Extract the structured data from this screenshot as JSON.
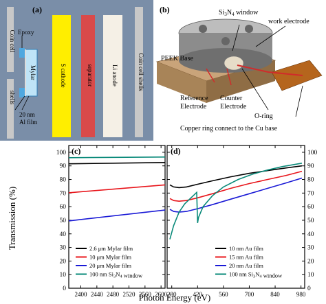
{
  "panel_a": {
    "label": "(a)",
    "coin_cell": "Coin cell",
    "epoxy": "Epoxy",
    "mylar": "Mylar",
    "shells": "shells",
    "al_film": [
      "20 nm",
      "Al film"
    ],
    "s_cathode": "S cathode",
    "separator": "separator",
    "li_anode": "Li anode",
    "coin_cell_shells": "Coin cell shells",
    "colors": {
      "background": "#7a8ea8",
      "cathode": "#ffee00",
      "separator": "#d94a4a",
      "anode": "#f5f0e6",
      "shell": "#c8c8c8",
      "epoxy": "#4fa8e0"
    }
  },
  "panel_b": {
    "label": "(b)",
    "window": "Si3N4 window",
    "work_electrode": "work electrode",
    "peek_base": "PEEK Base",
    "reference": [
      "Reference",
      "Electrode"
    ],
    "counter": [
      "Counter",
      "Electrode"
    ],
    "oring": "O-ring",
    "copper": "Copper ring connect to the Cu base",
    "colors": {
      "background": "#ffffff",
      "metal": "#8c8c8c",
      "peek": "#c9a47a",
      "copper": "#b5651d",
      "wire": "#d12b2b"
    }
  },
  "chart_data": [
    {
      "panel": "(c)",
      "type": "line",
      "ylabel": "Transmission (%)",
      "xlim": [
        2370,
        2610
      ],
      "ylim": [
        0,
        105
      ],
      "xticks": [
        "2400",
        "2440",
        "2480",
        "2520",
        "2560",
        "2600"
      ],
      "yticks": [
        "0",
        "10",
        "20",
        "30",
        "40",
        "50",
        "60",
        "70",
        "80",
        "90",
        "100"
      ],
      "series": [
        {
          "name": "2.6 μm Mylar film",
          "color": "#000000",
          "x": [
            2370,
            2610
          ],
          "y": [
            91.5,
            92.5
          ]
        },
        {
          "name": "10 μm Mylar film",
          "color": "#e8141a",
          "x": [
            2370,
            2610
          ],
          "y": [
            70.2,
            76.0
          ]
        },
        {
          "name": "20 μm Mylar film",
          "color": "#1a1ad6",
          "x": [
            2370,
            2610
          ],
          "y": [
            49.5,
            57.5
          ]
        },
        {
          "name": "100 nm Si3N4 window",
          "color": "#0a8a7a",
          "x": [
            2370,
            2610
          ],
          "y": [
            96.0,
            96.5
          ]
        }
      ]
    },
    {
      "panel": "(d)",
      "type": "line",
      "xlim": [
        255,
        1000
      ],
      "ylim": [
        0,
        105
      ],
      "xticks": [
        "280",
        "420",
        "560",
        "700",
        "840",
        "980"
      ],
      "yticks": [
        "0",
        "10",
        "20",
        "30",
        "40",
        "50",
        "60",
        "70",
        "80",
        "90",
        "100"
      ],
      "series": [
        {
          "name": "10 nm Au film",
          "color": "#000000",
          "x": [
            270,
            290,
            320,
            360,
            420,
            500,
            600,
            700,
            800,
            900,
            985
          ],
          "y": [
            76,
            74.5,
            74,
            74.5,
            76.5,
            79,
            82,
            84.5,
            86.5,
            88.5,
            90
          ]
        },
        {
          "name": "15 nm Au film",
          "color": "#e8141a",
          "x": [
            270,
            290,
            320,
            360,
            420,
            500,
            600,
            700,
            800,
            900,
            985
          ],
          "y": [
            66,
            64.5,
            64,
            64.5,
            66.5,
            69.5,
            73.5,
            77,
            80,
            83,
            86
          ]
        },
        {
          "name": "20 nm Au film",
          "color": "#1a1ad6",
          "x": [
            270,
            290,
            320,
            360,
            420,
            500,
            600,
            700,
            800,
            900,
            985
          ],
          "y": [
            58,
            56.5,
            56,
            56.5,
            58.5,
            61.5,
            65.5,
            69.5,
            73.5,
            77.5,
            81
          ]
        },
        {
          "name": "100 nm Si3N4 window",
          "color": "#0a8a7a",
          "x": [
            270,
            290,
            320,
            350,
            380,
            400,
            415,
            420,
            425,
            450,
            500,
            560,
            640,
            720,
            800,
            880,
            985
          ],
          "y": [
            36,
            46,
            56,
            62,
            66,
            68.5,
            70.5,
            48,
            52,
            60,
            68,
            74.5,
            80,
            84,
            87,
            89.5,
            92
          ]
        }
      ]
    }
  ],
  "charts": {
    "c_label": "(c)",
    "d_label": "(d)",
    "ylabel": "Transmission (%)",
    "xlabel": "Photon Energy (eV)"
  }
}
